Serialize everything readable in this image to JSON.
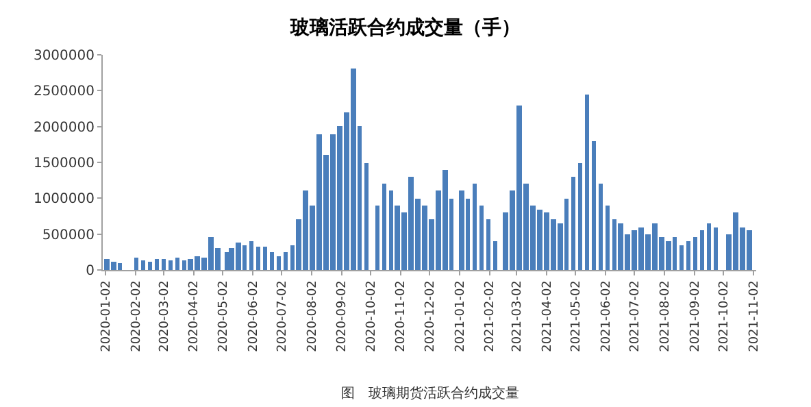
{
  "chart_data": {
    "type": "bar",
    "title": "玻璃活跃合约成交量（手）",
    "annotations": [
      "图　玻璃期货活跃合约成交量"
    ],
    "x": [
      "2020-01-03",
      "2020-01-10",
      "2020-01-17",
      "2020-02-03",
      "2020-02-10",
      "2020-02-17",
      "2020-02-24",
      "2020-03-02",
      "2020-03-09",
      "2020-03-16",
      "2020-03-23",
      "2020-03-30",
      "2020-04-06",
      "2020-04-13",
      "2020-04-20",
      "2020-04-27",
      "2020-05-06",
      "2020-05-11",
      "2020-05-18",
      "2020-05-25",
      "2020-06-01",
      "2020-06-08",
      "2020-06-15",
      "2020-06-22",
      "2020-06-29",
      "2020-07-06",
      "2020-07-13",
      "2020-07-20",
      "2020-07-27",
      "2020-08-03",
      "2020-08-10",
      "2020-08-17",
      "2020-08-24",
      "2020-08-31",
      "2020-09-07",
      "2020-09-14",
      "2020-09-21",
      "2020-09-28",
      "2020-10-09",
      "2020-10-16",
      "2020-10-23",
      "2020-10-30",
      "2020-11-06",
      "2020-11-13",
      "2020-11-20",
      "2020-11-27",
      "2020-12-04",
      "2020-12-11",
      "2020-12-18",
      "2020-12-25",
      "2021-01-04",
      "2021-01-11",
      "2021-01-18",
      "2021-01-25",
      "2021-02-01",
      "2021-02-08",
      "2021-02-19",
      "2021-02-26",
      "2021-03-05",
      "2021-03-12",
      "2021-03-19",
      "2021-03-26",
      "2021-04-02",
      "2021-04-09",
      "2021-04-16",
      "2021-04-23",
      "2021-04-30",
      "2021-05-07",
      "2021-05-14",
      "2021-05-21",
      "2021-05-28",
      "2021-06-04",
      "2021-06-11",
      "2021-06-18",
      "2021-06-25",
      "2021-07-02",
      "2021-07-09",
      "2021-07-16",
      "2021-07-23",
      "2021-07-30",
      "2021-08-06",
      "2021-08-13",
      "2021-08-20",
      "2021-08-27",
      "2021-09-03",
      "2021-09-10",
      "2021-09-17",
      "2021-09-24",
      "2021-10-08",
      "2021-10-15",
      "2021-10-22",
      "2021-10-29"
    ],
    "values": [
      150000,
      120000,
      100000,
      170000,
      130000,
      120000,
      150000,
      160000,
      140000,
      170000,
      140000,
      150000,
      200000,
      180000,
      450000,
      300000,
      250000,
      300000,
      380000,
      350000,
      400000,
      320000,
      330000,
      250000,
      200000,
      250000,
      350000,
      700000,
      1100000,
      900000,
      1900000,
      1600000,
      1900000,
      2000000,
      2200000,
      2800000,
      2000000,
      1500000,
      900000,
      1200000,
      1100000,
      900000,
      800000,
      1300000,
      1000000,
      900000,
      700000,
      1100000,
      1400000,
      1000000,
      1100000,
      1000000,
      1200000,
      900000,
      700000,
      400000,
      800000,
      1100000,
      2300000,
      1200000,
      900000,
      850000,
      800000,
      700000,
      650000,
      1000000,
      1300000,
      1500000,
      2450000,
      1800000,
      1200000,
      900000,
      700000,
      650000,
      500000,
      550000,
      600000,
      500000,
      650000,
      450000,
      400000,
      450000,
      350000,
      400000,
      450000,
      550000,
      650000,
      600000,
      500000,
      800000,
      600000,
      550000
    ],
    "color": "#4a7ebb",
    "xlim": [
      "2019-12-30",
      "2021-11-05"
    ],
    "xticks": [
      "2020-01-02",
      "2020-02-02",
      "2020-03-02",
      "2020-04-02",
      "2020-05-02",
      "2020-06-02",
      "2020-07-02",
      "2020-08-02",
      "2020-09-02",
      "2020-10-02",
      "2020-11-02",
      "2020-12-02",
      "2021-01-02",
      "2021-02-02",
      "2021-03-02",
      "2021-04-02",
      "2021-05-02",
      "2021-06-02",
      "2021-07-02",
      "2021-08-02",
      "2021-09-02",
      "2021-10-02",
      "2021-11-02"
    ],
    "ylim": [
      0,
      3000000
    ],
    "yticks": [
      0,
      500000,
      1000000,
      1500000,
      2000000,
      2500000,
      3000000
    ],
    "grid": false
  }
}
